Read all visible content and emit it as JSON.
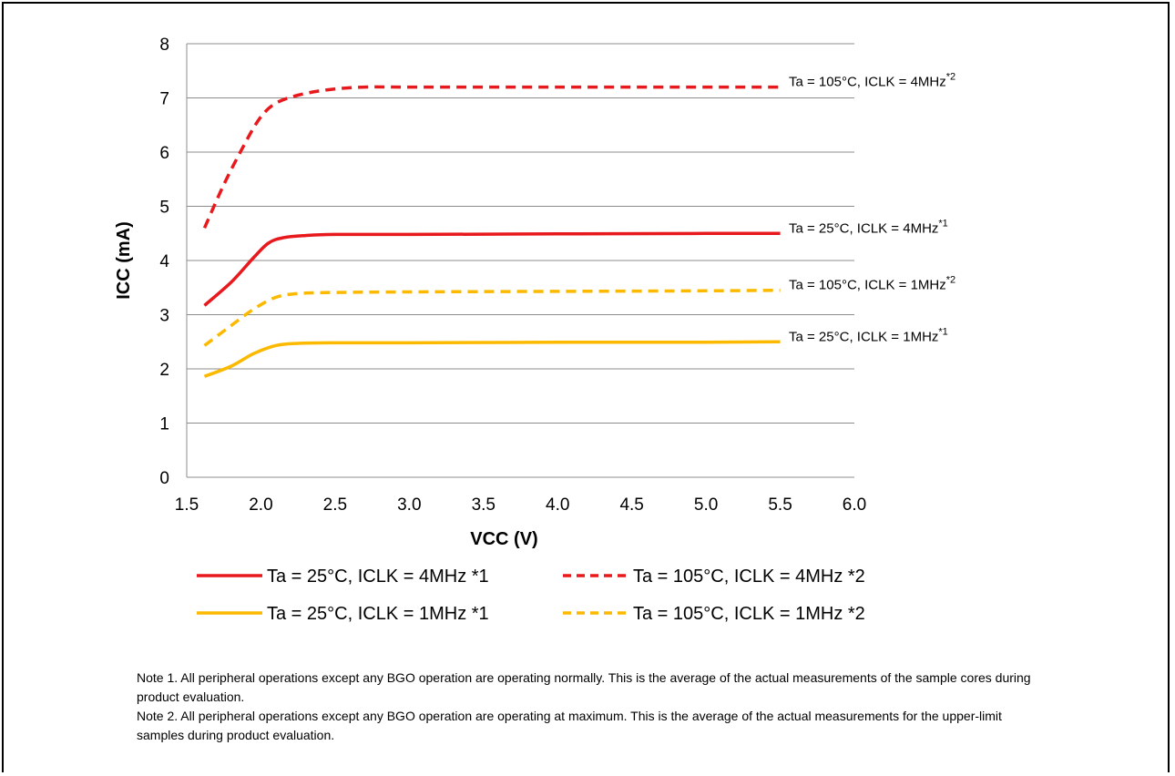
{
  "chart_data": {
    "type": "line",
    "xlabel": "VCC (V)",
    "ylabel": "ICC (mA)",
    "xlim": [
      1.5,
      6.0
    ],
    "ylim": [
      0,
      8
    ],
    "x_ticks": [
      "1.5",
      "2.0",
      "2.5",
      "3.0",
      "3.5",
      "4.0",
      "4.5",
      "5.0",
      "5.5",
      "6.0"
    ],
    "y_ticks": [
      "0",
      "1",
      "2",
      "3",
      "4",
      "5",
      "6",
      "7",
      "8"
    ],
    "grid": "horizontal",
    "legend_position": "bottom",
    "series": [
      {
        "name": "Ta = 25°C, ICLK = 4MHz *1",
        "label_text": "Ta = 25°C, ICLK = 4MHz",
        "label_sup": "*1",
        "color": "#e8191c",
        "dash": "solid",
        "x": [
          1.62,
          1.8,
          1.95,
          2.05,
          2.15,
          2.3,
          2.5,
          3.0,
          4.0,
          5.0,
          5.5
        ],
        "y": [
          3.17,
          3.6,
          4.05,
          4.32,
          4.42,
          4.46,
          4.48,
          4.48,
          4.49,
          4.5,
          4.5
        ]
      },
      {
        "name": "Ta = 105°C, ICLK = 4MHz *2",
        "label_text": "Ta = 105°C, ICLK = 4MHz",
        "label_sup": "*2",
        "color": "#e8191c",
        "dash": "dashed",
        "x": [
          1.62,
          1.75,
          1.9,
          2.0,
          2.1,
          2.25,
          2.45,
          2.7,
          3.0,
          4.0,
          5.0,
          5.5
        ],
        "y": [
          4.6,
          5.4,
          6.2,
          6.65,
          6.9,
          7.05,
          7.15,
          7.2,
          7.2,
          7.2,
          7.2,
          7.2
        ]
      },
      {
        "name": "Ta = 25°C, ICLK = 1MHz *1",
        "label_text": "Ta = 25°C, ICLK = 1MHz",
        "label_sup": "*1",
        "color": "#fbb900",
        "dash": "solid",
        "x": [
          1.62,
          1.8,
          1.95,
          2.1,
          2.25,
          2.5,
          3.0,
          4.0,
          5.0,
          5.5
        ],
        "y": [
          1.86,
          2.05,
          2.28,
          2.43,
          2.47,
          2.48,
          2.48,
          2.49,
          2.49,
          2.5
        ]
      },
      {
        "name": "Ta = 105°C, ICLK = 1MHz *2",
        "label_text": "Ta = 105°C, ICLK = 1MHz",
        "label_sup": "*2",
        "color": "#fbb900",
        "dash": "dashed",
        "x": [
          1.62,
          1.8,
          1.95,
          2.1,
          2.25,
          2.5,
          3.0,
          4.0,
          5.0,
          5.5
        ],
        "y": [
          2.43,
          2.8,
          3.1,
          3.32,
          3.39,
          3.41,
          3.42,
          3.43,
          3.44,
          3.45
        ]
      }
    ],
    "legend_order": [
      0,
      1,
      2,
      3
    ]
  },
  "notes": {
    "note1": "Note 1. All peripheral operations except any BGO operation are operating normally. This is the average of the actual measurements of the sample cores during product evaluation.",
    "note2": "Note 2. All peripheral operations except any BGO operation are operating at maximum. This is the average of the actual measurements for the upper-limit samples during product evaluation."
  }
}
